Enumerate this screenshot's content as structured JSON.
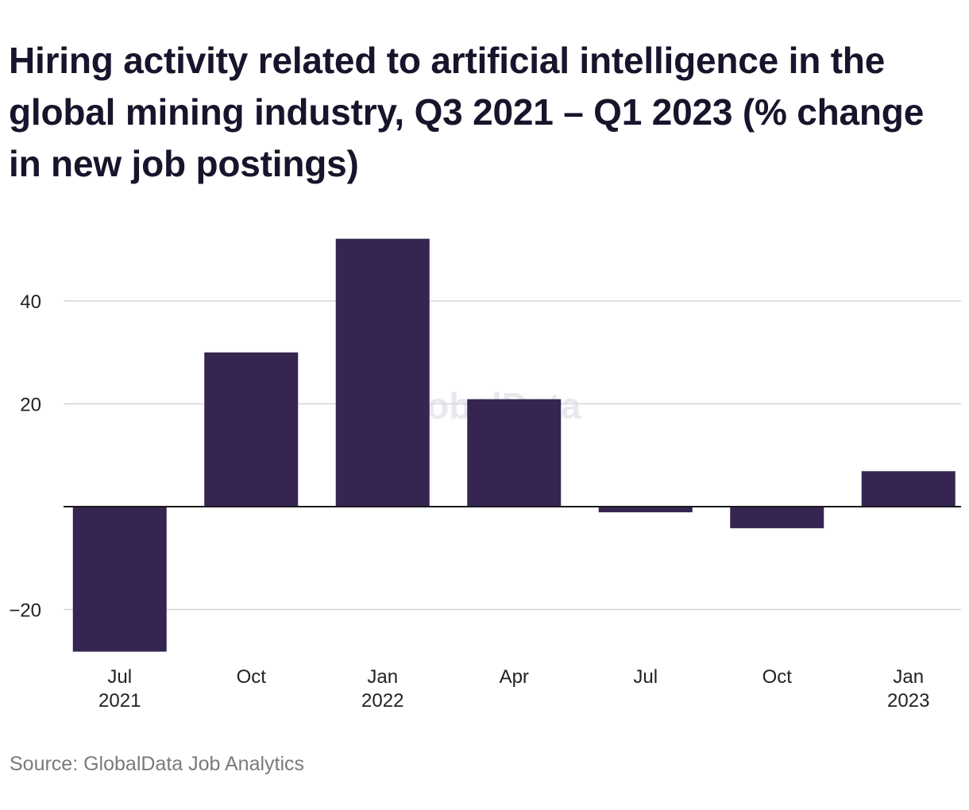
{
  "title": "Hiring activity related to artificial intelligence in the global mining industry, Q3 2021 – Q1 2023 (% change in new job postings)",
  "source": "Source: GlobalData Job Analytics",
  "watermark": "GlobalData",
  "colors": {
    "bar": "#362551",
    "grid": "#d6d6d6",
    "zero_line": "#1a1a1a"
  },
  "chart_data": {
    "type": "bar",
    "categories": [
      "Jul 2021",
      "Oct 2021",
      "Jan 2022",
      "Apr 2022",
      "Jul 2022",
      "Oct 2022",
      "Jan 2023"
    ],
    "category_labels": [
      [
        "Jul",
        "2021"
      ],
      [
        "Oct",
        ""
      ],
      [
        "Jan",
        "2022"
      ],
      [
        "Apr",
        ""
      ],
      [
        "Jul",
        ""
      ],
      [
        "Oct",
        ""
      ],
      [
        "Jan",
        "2023"
      ]
    ],
    "values": [
      -28.2,
      30.0,
      52.1,
      20.9,
      -1.1,
      -4.2,
      6.9
    ],
    "yticks": [
      -20,
      20,
      40
    ],
    "ytick_labels": [
      "−20",
      "20",
      "40"
    ],
    "ylim": [
      -30,
      55
    ],
    "grid": true,
    "legend": "none",
    "xlabel": "",
    "ylabel": ""
  }
}
